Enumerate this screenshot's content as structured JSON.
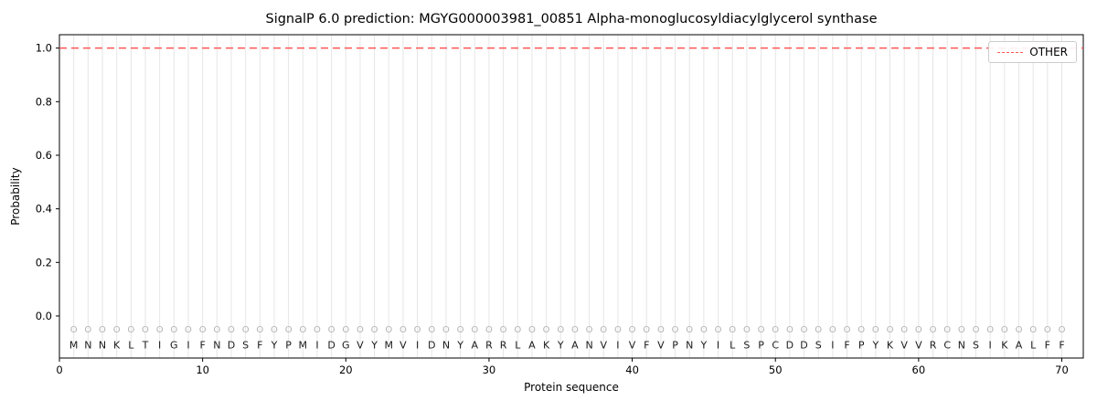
{
  "chart_data": {
    "type": "line",
    "title": "SignalP 6.0 prediction: MGYG000003981_00851 Alpha-monoglucosyldiacylglycerol synthase",
    "xlabel": "Protein sequence",
    "ylabel": "Probability",
    "xlim": [
      0,
      71.5
    ],
    "ylim": [
      -0.157,
      1.05
    ],
    "xticks": [
      0,
      10,
      20,
      30,
      40,
      50,
      60,
      70
    ],
    "xtick_labels": [
      "0",
      "10",
      "20",
      "30",
      "40",
      "50",
      "60",
      "70"
    ],
    "yticks": [
      0.0,
      0.2,
      0.4,
      0.6,
      0.8,
      1.0
    ],
    "ytick_labels": [
      "0.0",
      "0.2",
      "0.4",
      "0.6",
      "0.8",
      "1.0"
    ],
    "grid": "vertical-per-residue",
    "grid_color": "#e6e6e6",
    "legend": {
      "position": "upper right",
      "entries": [
        {
          "label": "OTHER",
          "color": "#ff5555",
          "dash": true
        }
      ]
    },
    "series": [
      {
        "name": "OTHER",
        "style": "dashed",
        "color": "#ff5555",
        "y_constant": 1.0
      }
    ],
    "sequence": "MNNKLTIGIFNDSFYPMIDGVYMVIDNYARRLAKYANVIVFVPNYILSPCDDSIFPYKVVRCNSIKALFF",
    "marker_char": "O",
    "marker_color": "#b3b3b3",
    "letter_color": "#1a1a1a",
    "marker_y": -0.05,
    "letters_y": -0.108
  }
}
